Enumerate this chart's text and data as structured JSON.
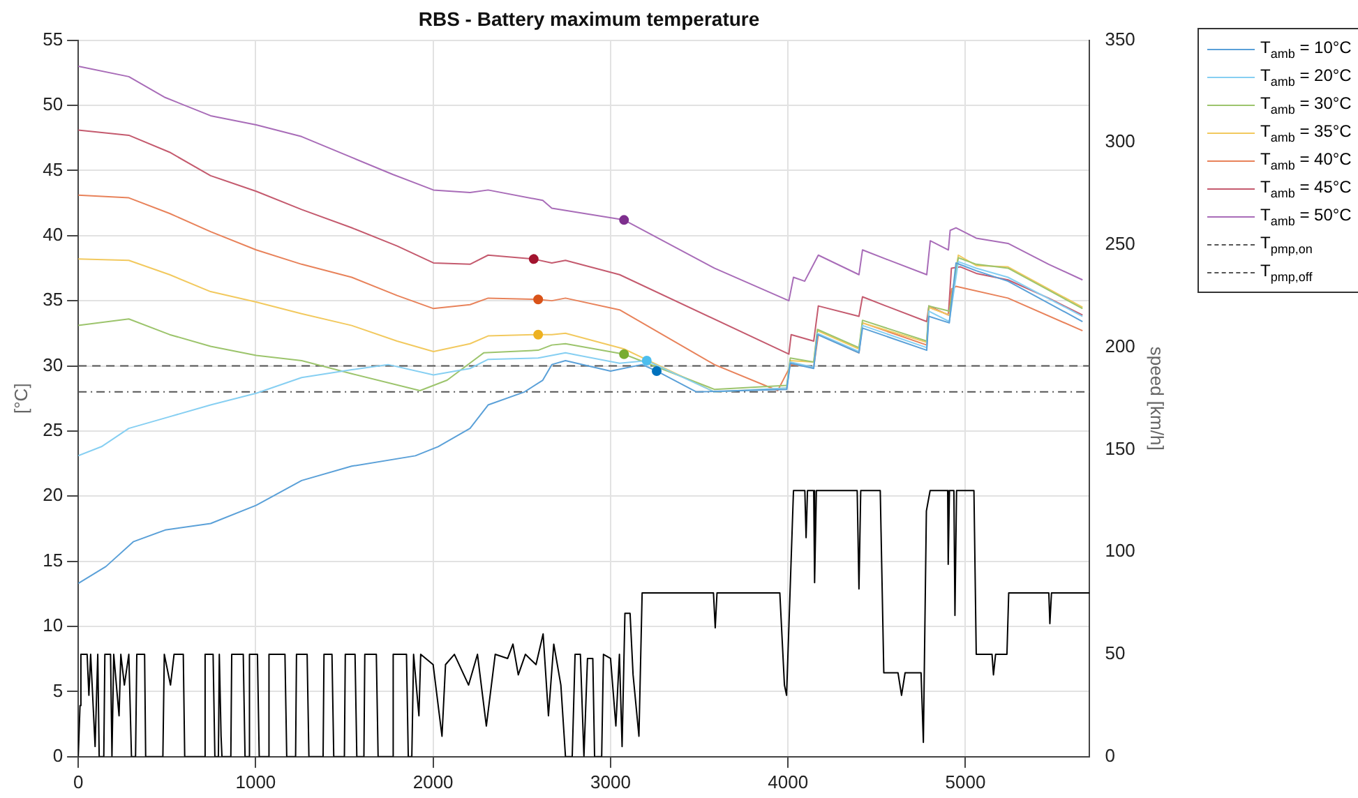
{
  "chart_data": {
    "type": "line",
    "title": "RBS - Battery maximum temperature",
    "ylabel": "[°C]",
    "y2label": "speed [km/h]",
    "xlim": [
      0,
      5700
    ],
    "xticks": [
      0,
      1000,
      2000,
      3000,
      4000,
      5000
    ],
    "ylim": [
      0,
      55
    ],
    "yticks": [
      0,
      5,
      10,
      15,
      20,
      25,
      30,
      35,
      40,
      45,
      50,
      55
    ],
    "y2lim": [
      0,
      350
    ],
    "y2ticks": [
      0,
      50,
      100,
      150,
      200,
      250,
      300,
      350
    ],
    "grid": true,
    "legend": "top right",
    "marker": "none",
    "line_style": "solid",
    "series": [
      {
        "name": "T$_{amb}$ = 10°C",
        "color": "#5aa0d8",
        "x": [
          0,
          156,
          310,
          490,
          746,
          1003,
          1259,
          1541,
          1900,
          2028,
          2208,
          2310,
          2515,
          2618,
          2669,
          2746,
          3000,
          3178,
          3260,
          3484,
          3993,
          4013,
          4145,
          4166,
          4400,
          4420,
          4782,
          4794,
          4909,
          4947,
          5061,
          5240,
          5660
        ],
        "values": [
          13.3,
          14.6,
          16.5,
          17.4,
          17.9,
          19.3,
          21.2,
          22.3,
          23.1,
          23.8,
          25.2,
          27.0,
          28.0,
          28.9,
          30.1,
          30.4,
          29.6,
          30.1,
          29.6,
          28.0,
          28.2,
          30.2,
          29.8,
          32.4,
          31.0,
          32.9,
          31.2,
          33.8,
          33.3,
          37.9,
          37.3,
          36.5,
          33.4
        ]
      },
      {
        "name": "T$_{amb}$ = 20°C",
        "color": "#86cff2",
        "x": [
          0,
          131,
          285,
          515,
          746,
          1003,
          1259,
          1541,
          1746,
          2002,
          2208,
          2310,
          2592,
          2669,
          2746,
          3051,
          3204,
          3585,
          3993,
          4013,
          4145,
          4166,
          4400,
          4420,
          4782,
          4794,
          4909,
          4960,
          5061,
          5240,
          5660
        ],
        "values": [
          23.1,
          23.8,
          25.2,
          26.1,
          27.0,
          27.9,
          29.1,
          29.7,
          30.1,
          29.3,
          29.8,
          30.5,
          30.6,
          30.8,
          31.0,
          30.2,
          30.4,
          28.0,
          28.3,
          30.3,
          29.9,
          32.5,
          31.1,
          33.1,
          31.4,
          34.2,
          33.4,
          38.0,
          37.5,
          36.8,
          33.8
        ]
      },
      {
        "name": "T$_{amb}$ = 30°C",
        "color": "#9cc46c",
        "x": [
          0,
          285,
          515,
          746,
          1003,
          1259,
          1541,
          1926,
          2079,
          2285,
          2592,
          2669,
          2746,
          3076,
          3585,
          3993,
          4013,
          4145,
          4166,
          4400,
          4420,
          4782,
          4794,
          4909,
          4960,
          5061,
          5240,
          5660
        ],
        "values": [
          33.1,
          33.6,
          32.4,
          31.5,
          30.8,
          30.4,
          29.4,
          28.1,
          28.9,
          31.0,
          31.2,
          31.6,
          31.7,
          30.9,
          28.2,
          28.5,
          30.6,
          30.3,
          32.8,
          31.4,
          33.5,
          31.9,
          34.6,
          34.2,
          38.3,
          37.8,
          37.5,
          34.4
        ]
      },
      {
        "name": "T$_{amb}$ = 35°C",
        "color": "#f2c95e",
        "x": [
          0,
          285,
          515,
          746,
          1003,
          1259,
          1541,
          1797,
          2002,
          2208,
          2310,
          2592,
          2669,
          2746,
          3076,
          3585,
          3993,
          4013,
          4145,
          4166,
          4400,
          4420,
          4782,
          4794,
          4909,
          4960,
          5061,
          5240,
          5660
        ],
        "values": [
          38.2,
          38.1,
          37.0,
          35.7,
          34.9,
          34.0,
          33.1,
          31.9,
          31.1,
          31.7,
          32.3,
          32.4,
          32.4,
          32.5,
          31.3,
          28.0,
          28.3,
          30.4,
          30.3,
          32.7,
          31.3,
          33.3,
          31.8,
          34.5,
          33.9,
          38.5,
          37.7,
          37.6,
          34.5
        ]
      },
      {
        "name": "T$_{amb}$ = 40°C",
        "color": "#e8825a",
        "x": [
          0,
          285,
          515,
          746,
          1003,
          1259,
          1541,
          1797,
          2002,
          2208,
          2310,
          2592,
          2669,
          2746,
          3051,
          3585,
          3942,
          4018,
          4145,
          4171,
          4400,
          4420,
          4782,
          4794,
          4909,
          4921,
          4947,
          5240,
          5660
        ],
        "values": [
          43.1,
          42.9,
          41.7,
          40.3,
          38.9,
          37.8,
          36.8,
          35.4,
          34.4,
          34.7,
          35.2,
          35.1,
          35.0,
          35.2,
          34.3,
          30.1,
          28.1,
          30.1,
          29.9,
          32.4,
          31.0,
          33.3,
          31.6,
          34.5,
          33.9,
          35.9,
          36.1,
          35.2,
          32.7
        ]
      },
      {
        "name": "T$_{amb}$ = 45°C",
        "color": "#c45a6e",
        "x": [
          0,
          285,
          515,
          746,
          1003,
          1259,
          1541,
          1797,
          2002,
          2208,
          2310,
          2567,
          2669,
          2746,
          3051,
          4005,
          4018,
          4145,
          4171,
          4400,
          4420,
          4552,
          4782,
          4794,
          4904,
          4921,
          4972,
          5061,
          5240,
          5469,
          5660
        ],
        "values": [
          48.1,
          47.7,
          46.4,
          44.6,
          43.4,
          42.0,
          40.6,
          39.2,
          37.9,
          37.8,
          38.5,
          38.2,
          37.9,
          38.1,
          37.0,
          30.9,
          32.4,
          31.9,
          34.6,
          33.8,
          35.3,
          34.6,
          33.4,
          34.6,
          33.9,
          37.5,
          37.6,
          37.1,
          36.6,
          35.2,
          33.9
        ]
      },
      {
        "name": "T$_{amb}$ = 50°C",
        "color": "#a86cb8",
        "x": [
          0,
          285,
          490,
          746,
          1003,
          1259,
          1541,
          1772,
          2002,
          2208,
          2310,
          2618,
          2669,
          3076,
          3585,
          4005,
          4031,
          4094,
          4171,
          4400,
          4420,
          4552,
          4782,
          4802,
          4904,
          4914,
          4947,
          5061,
          5240,
          5469,
          5660
        ],
        "values": [
          53.0,
          52.2,
          50.6,
          49.2,
          48.5,
          47.6,
          46.0,
          44.7,
          43.5,
          43.3,
          43.5,
          42.7,
          42.1,
          41.2,
          37.5,
          35.0,
          36.8,
          36.5,
          38.5,
          37.0,
          38.9,
          38.2,
          37.0,
          39.6,
          38.9,
          40.4,
          40.6,
          39.8,
          39.4,
          37.8,
          36.6
        ]
      },
      {
        "name": "T$_{pmp,on}$",
        "color": "#555555",
        "line_style": "dashed",
        "x": [
          0,
          5700
        ],
        "values": [
          30,
          30
        ]
      },
      {
        "name": "T$_{pmp,off}$",
        "color": "#555555",
        "line_style": "dashdot",
        "x": [
          0,
          5700
        ],
        "values": [
          28,
          28
        ]
      },
      {
        "type": "scatter",
        "marker": "circle",
        "x": [
          3260,
          3204,
          3076,
          2592,
          2592,
          2567,
          3076
        ],
        "values": [
          29.6,
          30.4,
          30.9,
          32.4,
          35.1,
          38.2,
          41.2
        ],
        "colors": [
          "#0072bd",
          "#4dbeee",
          "#77ac30",
          "#edb120",
          "#d95319",
          "#a2142f",
          "#7e2f8e"
        ]
      },
      {
        "axis": "y2",
        "color": "#000000",
        "x": [
          0,
          10,
          15,
          50,
          60,
          70,
          95,
          110,
          118,
          144,
          150,
          182,
          190,
          200,
          230,
          240,
          260,
          285,
          300,
          323,
          330,
          374,
          380,
          477,
          485,
          520,
          540,
          592,
          600,
          710,
          715,
          760,
          770,
          790,
          795,
          805,
          810,
          860,
          865,
          930,
          940,
          960,
          965,
          1010,
          1020,
          1070,
          1075,
          1165,
          1175,
          1225,
          1230,
          1290,
          1300,
          1380,
          1385,
          1430,
          1440,
          1500,
          1505,
          1560,
          1570,
          1610,
          1615,
          1680,
          1690,
          1770,
          1775,
          1850,
          1860,
          1880,
          1890,
          1920,
          1930,
          2000,
          2050,
          2070,
          2120,
          2200,
          2250,
          2300,
          2350,
          2420,
          2450,
          2480,
          2520,
          2580,
          2620,
          2650,
          2680,
          2720,
          2746,
          2784,
          2800,
          2830,
          2850,
          2870,
          2900,
          2910,
          2950,
          2960,
          3000,
          3030,
          3050,
          3065,
          3081,
          3110,
          3127,
          3160,
          3178,
          3580,
          3590,
          3600,
          3954,
          3980,
          3992,
          4031,
          4095,
          4102,
          4110,
          4145,
          4150,
          4160,
          4390,
          4400,
          4410,
          4520,
          4540,
          4620,
          4640,
          4660,
          4750,
          4763,
          4780,
          4801,
          4900,
          4903,
          4910,
          4935,
          4941,
          4950,
          5048,
          5061,
          5150,
          5158,
          5170,
          5234,
          5244,
          5470,
          5476,
          5485,
          5700
        ],
        "values": [
          0,
          25,
          50,
          50,
          30,
          50,
          5,
          50,
          0,
          0,
          50,
          50,
          0,
          50,
          20,
          50,
          35,
          50,
          0,
          0,
          50,
          50,
          0,
          0,
          50,
          35,
          50,
          50,
          0,
          0,
          50,
          50,
          0,
          0,
          50,
          10,
          0,
          0,
          50,
          50,
          0,
          0,
          50,
          50,
          0,
          0,
          50,
          50,
          0,
          0,
          50,
          50,
          0,
          0,
          50,
          50,
          0,
          0,
          50,
          50,
          0,
          0,
          50,
          50,
          0,
          0,
          50,
          50,
          0,
          0,
          50,
          20,
          50,
          45,
          10,
          45,
          50,
          35,
          50,
          15,
          50,
          48,
          55,
          40,
          50,
          45,
          60,
          20,
          55,
          35,
          0,
          0,
          50,
          50,
          0,
          48,
          48,
          0,
          0,
          50,
          48,
          15,
          50,
          5,
          70,
          70,
          40,
          10,
          80,
          80,
          63,
          80,
          80,
          35,
          30,
          130,
          130,
          107,
          130,
          130,
          85,
          130,
          130,
          82,
          130,
          130,
          41,
          41,
          30,
          41,
          41,
          7,
          120,
          130,
          130,
          94,
          130,
          130,
          69,
          130,
          130,
          50,
          50,
          40,
          50,
          50,
          80,
          80,
          65,
          80,
          80
        ]
      }
    ]
  }
}
